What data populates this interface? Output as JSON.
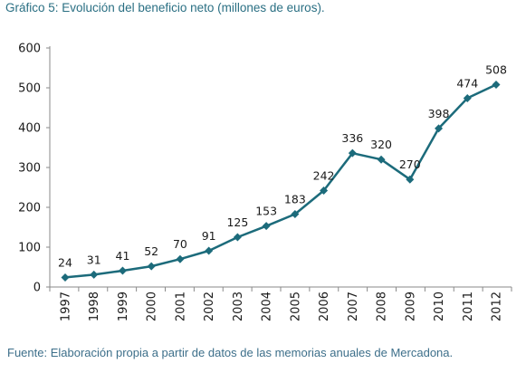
{
  "header": {
    "title": "Gráfico 5: Evolución del beneficio neto (millones de euros)."
  },
  "footer": {
    "source": "Fuente: Elaboración propia a partir de datos de las memorias anuales de Mercadona."
  },
  "chart_data": {
    "type": "line",
    "title": "Gráfico 5: Evolución del beneficio neto (millones de euros).",
    "xlabel": "",
    "ylabel": "",
    "categories": [
      "1997",
      "1998",
      "1999",
      "2000",
      "2001",
      "2002",
      "2003",
      "2004",
      "2005",
      "2006",
      "2007",
      "2008",
      "2009",
      "2010",
      "2011",
      "2012"
    ],
    "values": [
      24,
      31,
      41,
      52,
      70,
      91,
      125,
      153,
      183,
      242,
      336,
      320,
      270,
      398,
      474,
      508
    ],
    "ylim": [
      0,
      600
    ],
    "yticks": [
      0,
      100,
      200,
      300,
      400,
      500,
      600
    ],
    "grid": false,
    "legend": "none",
    "colors": {
      "line": "#1c6b7b",
      "marker": "#1c6b7b",
      "axis": "#8a8a8a"
    }
  }
}
